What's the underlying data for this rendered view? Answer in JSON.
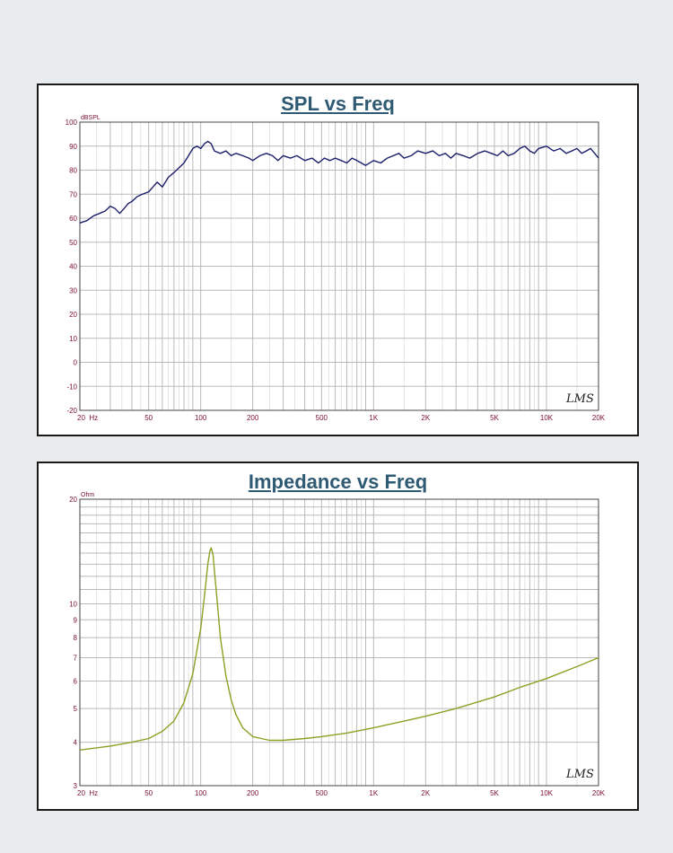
{
  "chart_data": [
    {
      "type": "line",
      "title": "SPL vs Freq",
      "ylabel": "dBSPL",
      "xscale": "log",
      "xlim": [
        20,
        20000
      ],
      "ylim": [
        -20,
        100
      ],
      "grid": true,
      "x_tick_values": [
        20,
        50,
        100,
        200,
        500,
        1000,
        2000,
        5000,
        10000,
        20000
      ],
      "x_tick_labels": [
        "20  Hz",
        "50",
        "100",
        "200",
        "500",
        "1K",
        "2K",
        "5K",
        "10K",
        "20K"
      ],
      "y_ticks": [
        100,
        90,
        80,
        70,
        60,
        50,
        40,
        30,
        20,
        10,
        0,
        -10,
        -20
      ],
      "logo": "LMS",
      "series": [
        {
          "color": "#1b1f6b",
          "x": [
            20,
            22,
            24,
            26,
            28,
            30,
            32,
            34,
            36,
            38,
            40,
            43,
            46,
            50,
            53,
            56,
            60,
            65,
            70,
            75,
            80,
            85,
            90,
            95,
            100,
            105,
            110,
            115,
            120,
            130,
            140,
            150,
            160,
            175,
            190,
            200,
            220,
            240,
            260,
            280,
            300,
            330,
            360,
            400,
            440,
            480,
            520,
            560,
            600,
            650,
            700,
            750,
            800,
            900,
            1000,
            1100,
            1200,
            1300,
            1400,
            1500,
            1650,
            1800,
            2000,
            2200,
            2400,
            2600,
            2800,
            3000,
            3300,
            3600,
            4000,
            4400,
            4800,
            5200,
            5600,
            6000,
            6500,
            7000,
            7500,
            8000,
            8500,
            9000,
            10000,
            11000,
            12000,
            13000,
            14000,
            15000,
            16000,
            17000,
            18000,
            19000,
            20000
          ],
          "y": [
            58,
            59,
            61,
            62,
            63,
            65,
            64,
            62,
            64,
            66,
            67,
            69,
            70,
            71,
            73,
            75,
            73,
            77,
            79,
            81,
            83,
            86,
            89,
            90,
            89,
            91,
            92,
            91,
            88,
            87,
            88,
            86,
            87,
            86,
            85,
            84,
            86,
            87,
            86,
            84,
            86,
            85,
            86,
            84,
            85,
            83,
            85,
            84,
            85,
            84,
            83,
            85,
            84,
            82,
            84,
            83,
            85,
            86,
            87,
            85,
            86,
            88,
            87,
            88,
            86,
            87,
            85,
            87,
            86,
            85,
            87,
            88,
            87,
            86,
            88,
            86,
            87,
            89,
            90,
            88,
            87,
            89,
            90,
            88,
            89,
            87,
            88,
            89,
            87,
            88,
            89,
            87,
            85
          ]
        }
      ]
    },
    {
      "type": "line",
      "title": "Impedance vs Freq",
      "ylabel": "Ohm",
      "xscale": "log",
      "yscale": "log",
      "xlim": [
        20,
        20000
      ],
      "ylim": [
        3,
        20
      ],
      "grid": true,
      "x_tick_values": [
        20,
        50,
        100,
        200,
        500,
        1000,
        2000,
        5000,
        10000,
        20000
      ],
      "x_tick_labels": [
        "20  Hz",
        "50",
        "100",
        "200",
        "500",
        "1K",
        "2K",
        "5K",
        "10K",
        "20K"
      ],
      "y_ticks": [
        20,
        10,
        9,
        8,
        7,
        6,
        5,
        4,
        3
      ],
      "logo": "LMS",
      "series": [
        {
          "color": "#8aa224",
          "x": [
            20,
            30,
            40,
            50,
            60,
            70,
            80,
            90,
            100,
            105,
            110,
            113,
            115,
            118,
            120,
            125,
            130,
            140,
            150,
            160,
            175,
            200,
            250,
            300,
            400,
            500,
            700,
            1000,
            1500,
            2000,
            3000,
            5000,
            7000,
            10000,
            15000,
            20000
          ],
          "y": [
            3.8,
            3.9,
            4.0,
            4.1,
            4.3,
            4.6,
            5.2,
            6.3,
            8.5,
            10.5,
            13.0,
            14.2,
            14.5,
            13.8,
            12.5,
            10.0,
            8.0,
            6.2,
            5.3,
            4.8,
            4.4,
            4.15,
            4.05,
            4.05,
            4.1,
            4.15,
            4.25,
            4.4,
            4.6,
            4.75,
            5.0,
            5.4,
            5.75,
            6.1,
            6.6,
            7.0
          ]
        }
      ]
    }
  ]
}
